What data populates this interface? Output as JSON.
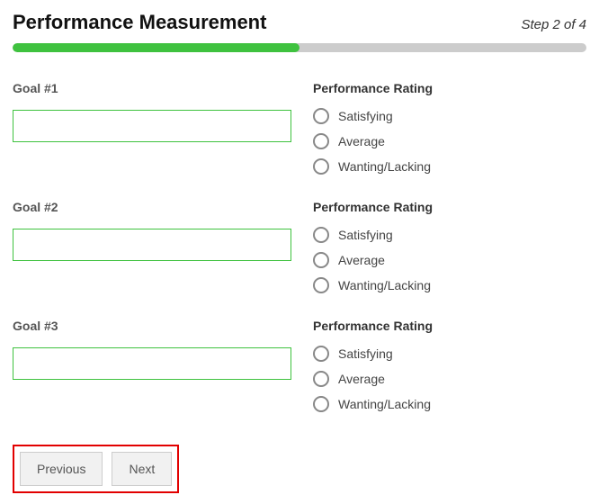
{
  "header": {
    "title": "Performance Measurement",
    "step_label": "Step 2 of 4"
  },
  "progress": {
    "percent": 50,
    "fill_color": "#3fc23f",
    "track_color": "#cccccc"
  },
  "rating_heading": "Performance Rating",
  "rating_options": [
    "Satisfying",
    "Average",
    "Wanting/Lacking"
  ],
  "goals": [
    {
      "label": "Goal #1",
      "value": ""
    },
    {
      "label": "Goal #2",
      "value": ""
    },
    {
      "label": "Goal #3",
      "value": ""
    }
  ],
  "buttons": {
    "previous": "Previous",
    "next": "Next"
  },
  "colors": {
    "input_border": "#3fc23f",
    "highlight_box": "#e20000"
  }
}
